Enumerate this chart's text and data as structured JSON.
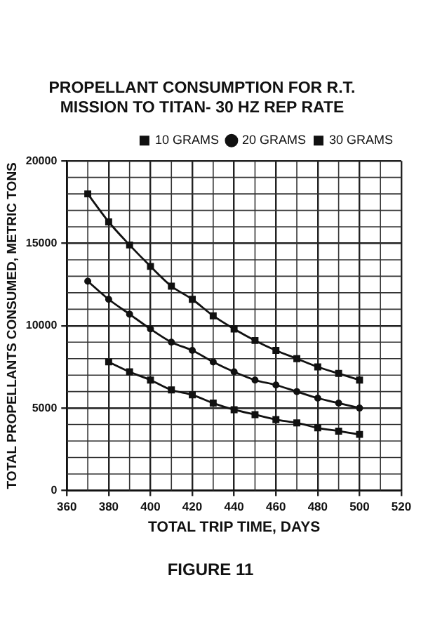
{
  "chart_data": {
    "type": "line",
    "title": "PROPELLANT CONSUMPTION FOR R.T. MISSION TO TITAN- 30 HZ REP RATE",
    "xlabel": "TOTAL TRIP TIME, DAYS",
    "ylabel": "TOTAL PROPELLANTS CONSUMED, METRIC TONS",
    "annotations": [
      "FIGURE 11"
    ],
    "xlim": [
      360,
      520
    ],
    "xticks": [
      360,
      380,
      400,
      420,
      440,
      460,
      480,
      500,
      520
    ],
    "ylim": [
      0,
      20000
    ],
    "yticks": [
      0,
      5000,
      10000,
      15000,
      20000
    ],
    "grid": true,
    "legend": "top right",
    "line_style": "solid",
    "series": [
      {
        "name": "10 GRAMS",
        "color": "#111111",
        "marker": "square",
        "x": [
          380,
          390,
          400,
          410,
          420,
          430,
          440,
          450,
          460,
          470,
          480,
          490,
          500
        ],
        "values": [
          7800,
          7200,
          6700,
          6100,
          5800,
          5300,
          4900,
          4600,
          4300,
          4100,
          3800,
          3600,
          3400
        ]
      },
      {
        "name": "20 GRAMS",
        "color": "#111111",
        "marker": "circle",
        "x": [
          370,
          380,
          390,
          400,
          410,
          420,
          430,
          440,
          450,
          460,
          470,
          480,
          490,
          500
        ],
        "values": [
          12700,
          11600,
          10700,
          9800,
          9000,
          8500,
          7800,
          7200,
          6700,
          6400,
          6000,
          5600,
          5300,
          5000
        ]
      },
      {
        "name": "30 GRAMS",
        "color": "#111111",
        "marker": "square",
        "x": [
          370,
          380,
          390,
          400,
          410,
          420,
          430,
          440,
          450,
          460,
          470,
          480,
          490,
          500
        ],
        "values": [
          18000,
          16300,
          14900,
          13600,
          12400,
          11600,
          10600,
          9800,
          9100,
          8500,
          8000,
          7500,
          7100,
          6700
        ]
      }
    ]
  }
}
